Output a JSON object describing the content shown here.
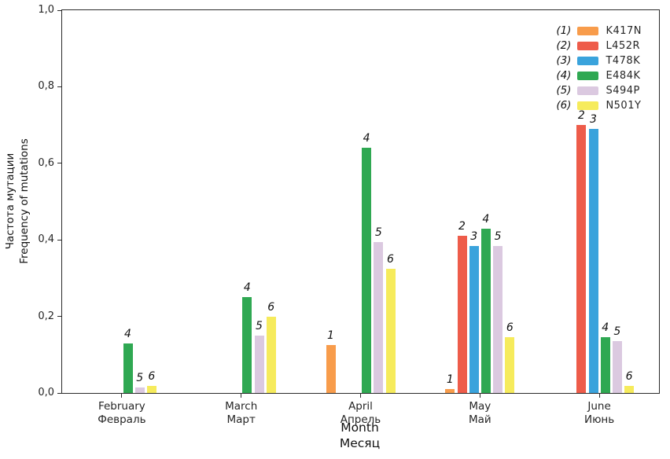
{
  "chart_data": {
    "type": "bar",
    "title": "",
    "xlabel_line1": "Month",
    "xlabel_line2": "Месяц",
    "ylabel_line1": "Частота мутации",
    "ylabel_line2": "Frequency of mutations",
    "ylim": [
      0,
      1.0
    ],
    "grid": false,
    "legend_position": "upper-right-inside",
    "decimal_separator": ",",
    "yticks": [
      {
        "value": 0.0,
        "label": "0,0"
      },
      {
        "value": 0.2,
        "label": "0,2"
      },
      {
        "value": 0.4,
        "label": "0,4"
      },
      {
        "value": 0.6,
        "label": "0,6"
      },
      {
        "value": 0.8,
        "label": "0,8"
      },
      {
        "value": 1.0,
        "label": "1,0"
      }
    ],
    "categories": [
      {
        "en": "February",
        "ru": "Февраль"
      },
      {
        "en": "March",
        "ru": "Март"
      },
      {
        "en": "April",
        "ru": "Апрель"
      },
      {
        "en": "May",
        "ru": "Май"
      },
      {
        "en": "June",
        "ru": "Июнь"
      }
    ],
    "series": [
      {
        "legend_num": "(1)",
        "bar_num": "1",
        "name": "K417N",
        "color": "#F89C4B",
        "values": [
          null,
          null,
          0.125,
          0.01,
          null
        ]
      },
      {
        "legend_num": "(2)",
        "bar_num": "2",
        "name": "L452R",
        "color": "#EE5C4A",
        "values": [
          null,
          null,
          null,
          0.41,
          0.7
        ]
      },
      {
        "legend_num": "(3)",
        "bar_num": "3",
        "name": "T478K",
        "color": "#3AA3DC",
        "values": [
          null,
          null,
          null,
          0.385,
          0.69
        ]
      },
      {
        "legend_num": "(4)",
        "bar_num": "4",
        "name": "E484K",
        "color": "#2FA852",
        "values": [
          0.13,
          0.25,
          0.64,
          0.43,
          0.145
        ]
      },
      {
        "legend_num": "(5)",
        "bar_num": "5",
        "name": "S494P",
        "color": "#DBC9E0",
        "values": [
          0.015,
          0.15,
          0.395,
          0.385,
          0.135
        ]
      },
      {
        "legend_num": "(6)",
        "bar_num": "6",
        "name": "N501Y",
        "color": "#F6EB5C",
        "values": [
          0.018,
          0.2,
          0.325,
          0.145,
          0.018
        ]
      }
    ]
  }
}
